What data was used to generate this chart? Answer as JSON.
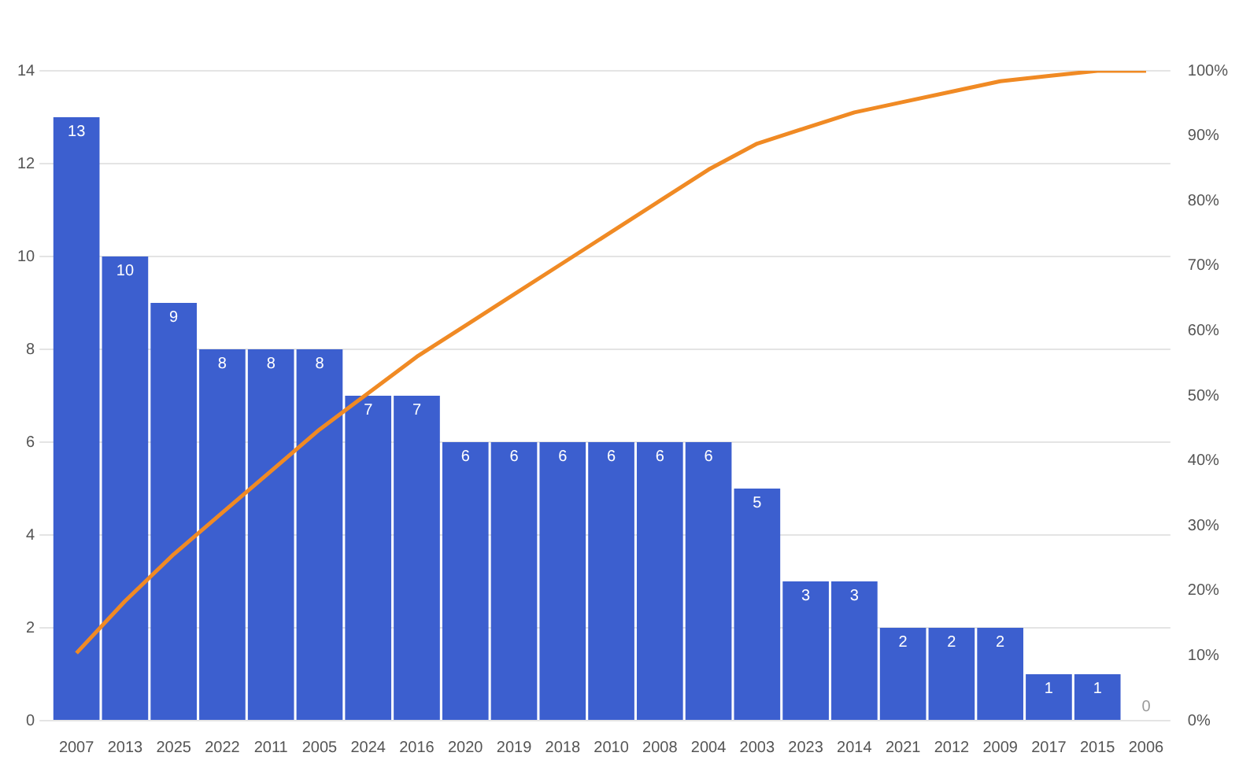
{
  "chart_data": {
    "type": "bar",
    "categories": [
      "2007",
      "2013",
      "2025",
      "2022",
      "2011",
      "2005",
      "2024",
      "2016",
      "2020",
      "2019",
      "2018",
      "2010",
      "2008",
      "2004",
      "2003",
      "2023",
      "2014",
      "2021",
      "2012",
      "2009",
      "2017",
      "2015",
      "2006"
    ],
    "series": [
      {
        "color": "#3c5fcf",
        "values": [
          13,
          10,
          9,
          8,
          8,
          8,
          7,
          7,
          6,
          6,
          6,
          6,
          6,
          6,
          5,
          3,
          3,
          2,
          2,
          2,
          1,
          1,
          0
        ],
        "value_labels": [
          "13",
          "10",
          "9",
          "8",
          "8",
          "8",
          "7",
          "7",
          "6",
          "6",
          "6",
          "6",
          "6",
          "6",
          "5",
          "3",
          "3",
          "2",
          "2",
          "2",
          "1",
          "1",
          "0"
        ]
      },
      {
        "type": "line",
        "axis": "y2",
        "color": "#f08a24",
        "values": [
          10.4,
          18.4,
          25.6,
          32,
          38.4,
          44.8,
          50.4,
          56,
          60.8,
          65.6,
          70.4,
          75.2,
          80,
          84.8,
          88.8,
          91.2,
          93.6,
          95.2,
          96.8,
          98.4,
          99.2,
          100,
          100
        ]
      }
    ],
    "ylim": [
      0,
      14
    ],
    "yticks": [
      0,
      2,
      4,
      6,
      8,
      10,
      12,
      14
    ],
    "y2lim": [
      0,
      100
    ],
    "y2ticks": [
      {
        "value": 0,
        "label": "0%"
      },
      {
        "value": 10,
        "label": "10%"
      },
      {
        "value": 20,
        "label": "20%"
      },
      {
        "value": 30,
        "label": "30%"
      },
      {
        "value": 40,
        "label": "40%"
      },
      {
        "value": 50,
        "label": "50%"
      },
      {
        "value": 60,
        "label": "60%"
      },
      {
        "value": 70,
        "label": "70%"
      },
      {
        "value": 80,
        "label": "80%"
      },
      {
        "value": 90,
        "label": "90%"
      },
      {
        "value": 100,
        "label": "100%"
      }
    ],
    "grid": "y",
    "legend": false,
    "marker": "none"
  }
}
